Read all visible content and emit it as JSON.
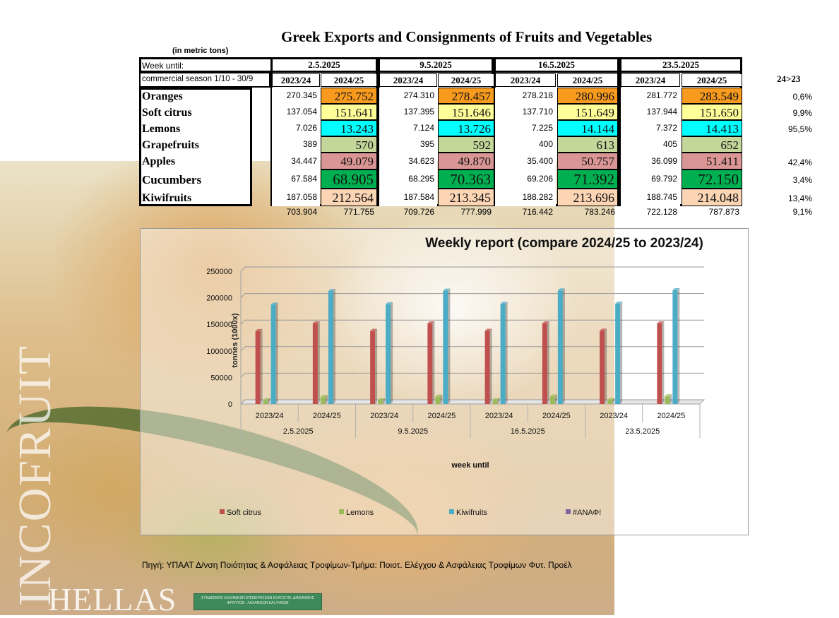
{
  "header": {
    "title": "Greek Exports and Consignments of Fruits and Vegetables",
    "unit": "(in metric tons)",
    "week_label": "Week until:",
    "season_label": "commercial season 1/10 - 30/9",
    "pct_label": "24>23"
  },
  "weeks": [
    "2.5.2025",
    "9.5.2025",
    "16.5.2025",
    "23.5.2025"
  ],
  "seasons": [
    "2023/24",
    "2024/25"
  ],
  "rows": [
    {
      "name": "Oranges",
      "color": "#f79a1e",
      "size": 17,
      "pct": "0,6%",
      "values": [
        "270.345",
        "275.752",
        "274.310",
        "278.457",
        "278.218",
        "280.996",
        "281.772",
        "283.549"
      ]
    },
    {
      "name": "Soft citrus",
      "color": "#ffff99",
      "size": 17,
      "pct": "9,9%",
      "values": [
        "137.054",
        "151.641",
        "137.395",
        "151.646",
        "137.710",
        "151.649",
        "137.944",
        "151.650"
      ]
    },
    {
      "name": "Lemons",
      "color": "#00ffff",
      "size": 17,
      "pct": "95,5%",
      "values": [
        "7.026",
        "13.243",
        "7.124",
        "13.726",
        "7.225",
        "14.144",
        "7.372",
        "14.413"
      ]
    },
    {
      "name": "Grapefruits",
      "color": "#c4d79b",
      "size": 17,
      "pct": "",
      "values": [
        "389",
        "570",
        "395",
        "592",
        "400",
        "613",
        "405",
        "652"
      ]
    },
    {
      "name": "Apples",
      "color": "#da9694",
      "size": 17,
      "pct": "42,4%",
      "values": [
        "34.447",
        "49.079",
        "34.623",
        "49.870",
        "35.400",
        "50.757",
        "36.099",
        "51.411"
      ]
    },
    {
      "name": "Cucumbers",
      "color": "#00b050",
      "size": 21,
      "pct": "3,4%",
      "values": [
        "67.584",
        "68.905",
        "68.295",
        "70.363",
        "69.206",
        "71.392",
        "69.792",
        "72.150"
      ]
    },
    {
      "name": "Kiwifruits",
      "color": "#fcd5b4",
      "size": 18,
      "pct": "13,4%",
      "values": [
        "187.058",
        "212.564",
        "187.584",
        "213.345",
        "188.282",
        "213.696",
        "188.745",
        "214.048"
      ]
    }
  ],
  "totals": {
    "values": [
      "703.904",
      "771.755",
      "709.726",
      "777.999",
      "716.442",
      "783.246",
      "722.128",
      "787.873"
    ],
    "pct": "9,1%"
  },
  "chart_data": {
    "type": "bar",
    "title": "Weekly report (compare 2024/25 to 2023/24)",
    "xlabel": "week until",
    "ylabel": "tonnes (1000x)",
    "ylim": [
      0,
      250000
    ],
    "yticks": [
      0,
      50000,
      100000,
      150000,
      200000,
      250000
    ],
    "groups": [
      "2.5.2025",
      "9.5.2025",
      "16.5.2025",
      "23.5.2025"
    ],
    "categories": [
      "2023/24",
      "2024/25",
      "2023/24",
      "2024/25",
      "2023/24",
      "2024/25",
      "2023/24",
      "2024/25"
    ],
    "series": [
      {
        "name": "Soft citrus",
        "color": "#c0504d",
        "values": [
          137054,
          151641,
          137395,
          151646,
          137710,
          151649,
          137944,
          151650
        ]
      },
      {
        "name": "Lemons",
        "color": "#9bbb59",
        "values": [
          7026,
          13243,
          7124,
          13726,
          7225,
          14144,
          7372,
          14413
        ]
      },
      {
        "name": "Kiwifruits",
        "color": "#4bacc6",
        "values": [
          187058,
          212564,
          187584,
          213345,
          188282,
          213696,
          188745,
          214048
        ]
      },
      {
        "name": "#ΑΝΑΦ!",
        "color": "#8064a2",
        "values": [
          0,
          0,
          0,
          0,
          0,
          0,
          0,
          0
        ]
      }
    ],
    "grid": true,
    "legend": "bottom"
  },
  "source": "Πηγή: ΥΠΑΑΤ  Δ/νση Ποιότητας & Ασφάλειας Τροφίμων-Τμήμα: Ποιοτ. Ελέγχου & Ασφάλειας Τροφίμων Φυτ. Προέλ",
  "branding": {
    "vertical": "INCOFRUIT",
    "hellas": "HELLAS",
    "badge_text": "ΣΥΝΔΕΣΜΟΣ ΕΛΛΗΝΙΚΩΝ ΕΠΙΧΕΙΡΗΣΕΩΝ ΕΞΑΓΩΓΗΣ, ΔΙΑΚΙΝΗΣΗΣ ΦΡΟΥΤΩΝ - ΛΑΧΑΝΙΚΩΝ ΚΑΙ ΧΥΜΩΝ"
  }
}
